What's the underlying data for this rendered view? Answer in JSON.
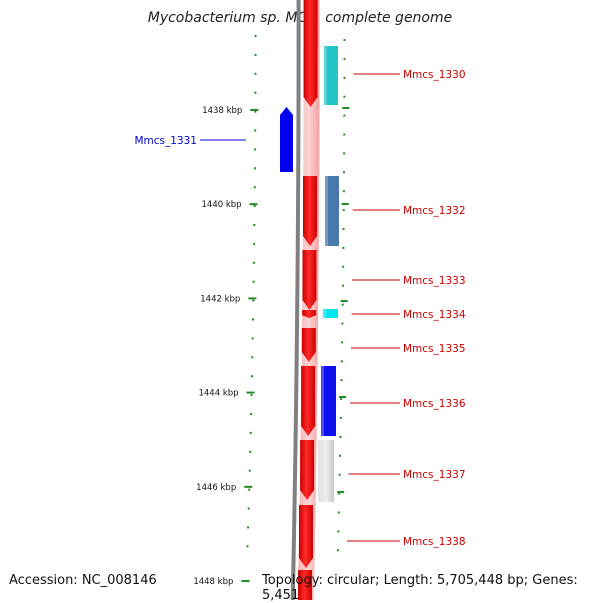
{
  "title": "Mycobacterium sp. MCS, complete genome",
  "accession_text": "Accession: NC_008146",
  "topology_text": "Topology: circular; Length: 5,705,448 bp; Genes: 5,451",
  "axis_unit": "kbp",
  "axis_labels": [
    {
      "text": "1438 kbp",
      "value": 1438
    },
    {
      "text": "1440 kbp",
      "value": 1440
    },
    {
      "text": "1442 kbp",
      "value": 1442
    },
    {
      "text": "1444 kbp",
      "value": 1444
    },
    {
      "text": "1446 kbp",
      "value": 1446
    },
    {
      "text": "1448 kbp",
      "value": 1448
    }
  ],
  "colors": {
    "forward_track": "#ee1c1c",
    "reverse_label": "#0000cc",
    "forward_label": "#cc0000",
    "tick": "#228b22",
    "backbone": "#808080"
  },
  "genes": [
    {
      "name": "Mmcs_1330",
      "strand": "+",
      "color": "#22c4c8"
    },
    {
      "name": "Mmcs_1331",
      "strand": "-",
      "color": "#0000ee"
    },
    {
      "name": "Mmcs_1332",
      "strand": "+",
      "color": "#4a78ac"
    },
    {
      "name": "Mmcs_1333",
      "strand": "+",
      "color": null
    },
    {
      "name": "Mmcs_1334",
      "strand": "+",
      "color": "#00e6ee"
    },
    {
      "name": "Mmcs_1335",
      "strand": "+",
      "color": null
    },
    {
      "name": "Mmcs_1336",
      "strand": "+",
      "color": "#1010ee"
    },
    {
      "name": "Mmcs_1337",
      "strand": "+",
      "color": "#c0c0c0"
    },
    {
      "name": "Mmcs_1338",
      "strand": "+",
      "color": null
    }
  ]
}
